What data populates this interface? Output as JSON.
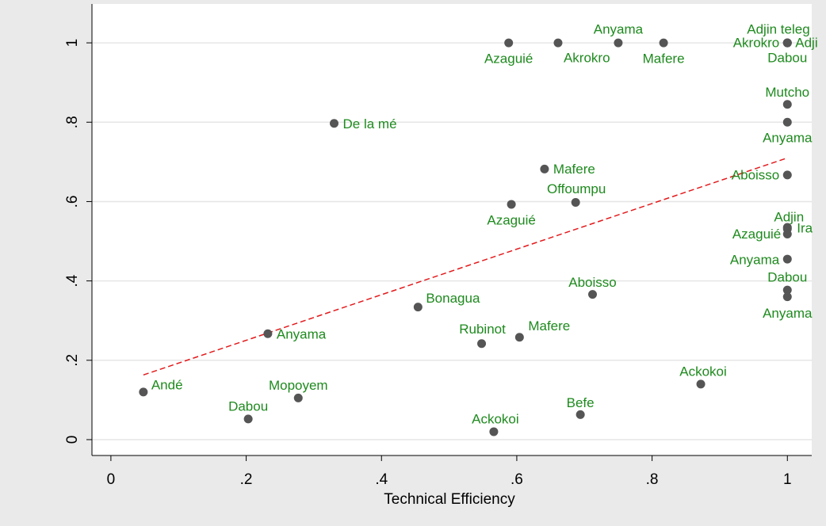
{
  "chart_data": {
    "type": "scatter",
    "x_label": "Technical Efficiency",
    "x": [
      0.048,
      0.203,
      0.277,
      0.232,
      0.33,
      0.454,
      0.548,
      0.604,
      0.566,
      0.694,
      0.712,
      0.872,
      0.592,
      0.687,
      0.641,
      0.588,
      0.661,
      0.75,
      0.817,
      1.0,
      1.0,
      1.0,
      1.0,
      1.0,
      1.0,
      1.0,
      1.0,
      1.0,
      1.0,
      1.0,
      1.0,
      1.0
    ],
    "y": [
      0.12,
      0.052,
      0.105,
      0.267,
      0.797,
      0.334,
      0.242,
      0.258,
      0.02,
      0.063,
      0.366,
      0.14,
      0.593,
      0.598,
      0.682,
      1.0,
      1.0,
      1.0,
      1.0,
      1.0,
      1.0,
      1.0,
      1.0,
      0.845,
      0.8,
      0.667,
      0.535,
      0.531,
      0.518,
      0.455,
      0.377,
      0.36
    ],
    "labels": [
      "Andé",
      "Dabou",
      "Mopoyem",
      "Anyama",
      "De la mé",
      "Bonagua",
      "Rubinot",
      "Mafere",
      "Ackokoi",
      "Befe",
      "Aboisso",
      "Ackokoi",
      "Azaguié",
      "Offoumpu",
      "Mafere",
      "Azaguié",
      "Akrokro",
      "Anyama",
      "Mafere",
      "Adjin teleg",
      "Akrokro",
      "Adji",
      "Dabou",
      "Mutcho",
      "Anyama",
      "Aboisso",
      "Adjin",
      "Ira",
      "Azaguié",
      "Anyama",
      "Dabou",
      "Anyama"
    ],
    "marker_color": "#555555",
    "label_color": "#1e8a1e",
    "fit": {
      "x": [
        0.048,
        1.0
      ],
      "y": [
        0.163,
        0.71
      ],
      "color": "#e31a1c"
    },
    "xlim": [
      -0.028,
      1.036
    ],
    "ylim": [
      -0.04,
      1.098
    ],
    "xticks": [
      0,
      {
        "value": 0.2,
        "label": ".2"
      },
      {
        "value": 0.4,
        "label": ".4"
      },
      {
        "value": 0.6,
        "label": ".6"
      },
      {
        "value": 0.8,
        "label": ".8"
      },
      1
    ],
    "yticks": [
      0,
      {
        "value": 0.2,
        "label": ".2"
      },
      {
        "value": 0.4,
        "label": ".4"
      },
      {
        "value": 0.6,
        "label": ".6"
      },
      {
        "value": 0.8,
        "label": ".8"
      },
      1
    ],
    "grid": true
  }
}
